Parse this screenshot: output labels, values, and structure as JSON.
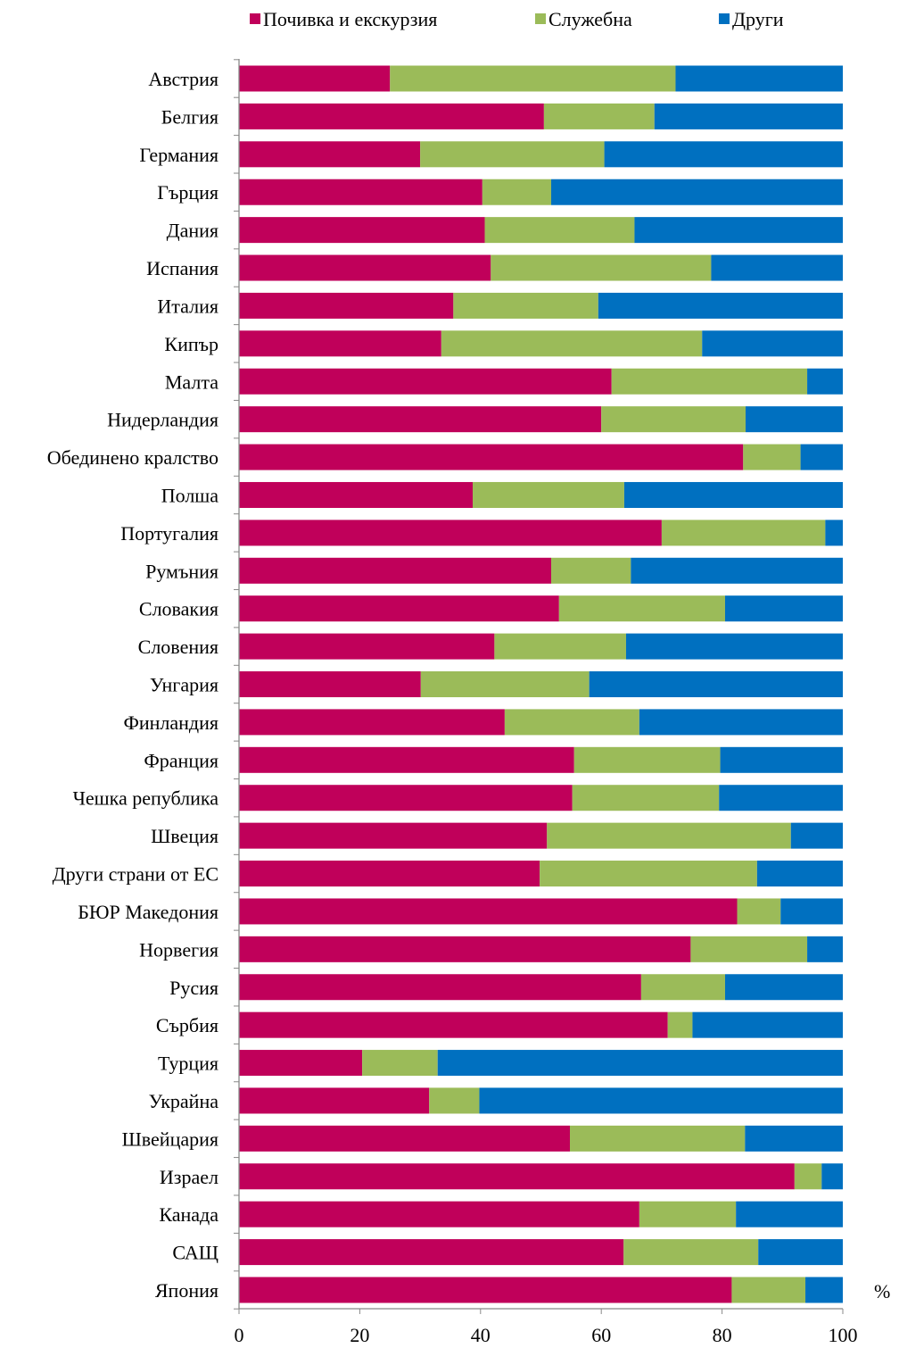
{
  "chart_data": {
    "type": "bar",
    "orientation": "horizontal",
    "stacked": true,
    "title": "",
    "xlabel": "%",
    "ylabel": "",
    "xlim": [
      0,
      100
    ],
    "xticks": [
      0,
      20,
      40,
      60,
      80,
      100
    ],
    "grid": false,
    "legend_position": "top",
    "categories": [
      "Австрия",
      "Белгия",
      "Германия",
      "Гърция",
      "Дания",
      "Испания",
      "Италия",
      "Кипър",
      "Малта",
      "Нидерландия",
      "Обединено кралство",
      "Полша",
      "Португалия",
      "Румъния",
      "Словакия",
      "Словения",
      "Унгария",
      "Финландия",
      "Франция",
      "Чешка република",
      "Швеция",
      "Други страни от ЕС",
      "БЮР Македония",
      "Норвегия",
      "Русия",
      "Сърбия",
      "Турция",
      "Украйна",
      "Швейцария",
      "Израел",
      "Канада",
      "САЩ",
      "Япония"
    ],
    "series": [
      {
        "name": "Почивка и екскурзия",
        "color": "#c0005a",
        "values": [
          25.0,
          50.5,
          30.0,
          40.3,
          40.7,
          41.7,
          35.5,
          33.5,
          61.7,
          60.0,
          83.5,
          38.7,
          70.0,
          51.7,
          53.0,
          42.3,
          30.1,
          44.0,
          55.5,
          55.2,
          51.0,
          49.8,
          82.5,
          74.8,
          66.6,
          71.0,
          20.4,
          31.5,
          54.8,
          92.0,
          66.3,
          63.7,
          81.6
        ]
      },
      {
        "name": "Служебна",
        "color": "#9bbb59",
        "values": [
          47.3,
          18.3,
          30.5,
          11.4,
          24.8,
          36.5,
          24.0,
          43.2,
          32.4,
          23.9,
          9.5,
          25.1,
          27.1,
          13.2,
          27.5,
          21.8,
          27.9,
          22.3,
          24.2,
          24.3,
          40.4,
          36.0,
          7.2,
          19.3,
          13.9,
          4.1,
          12.5,
          8.3,
          29.0,
          4.5,
          16.0,
          22.3,
          12.2
        ]
      },
      {
        "name": "Други",
        "color": "#0070c0",
        "values": [
          27.7,
          31.2,
          39.5,
          48.3,
          34.5,
          21.8,
          40.5,
          23.3,
          5.9,
          16.1,
          7.0,
          36.2,
          2.9,
          35.1,
          19.5,
          35.9,
          42.0,
          33.7,
          20.3,
          20.5,
          8.6,
          14.2,
          10.3,
          5.9,
          19.5,
          24.9,
          67.1,
          60.2,
          16.2,
          3.5,
          17.7,
          14.0,
          6.2
        ]
      }
    ]
  }
}
